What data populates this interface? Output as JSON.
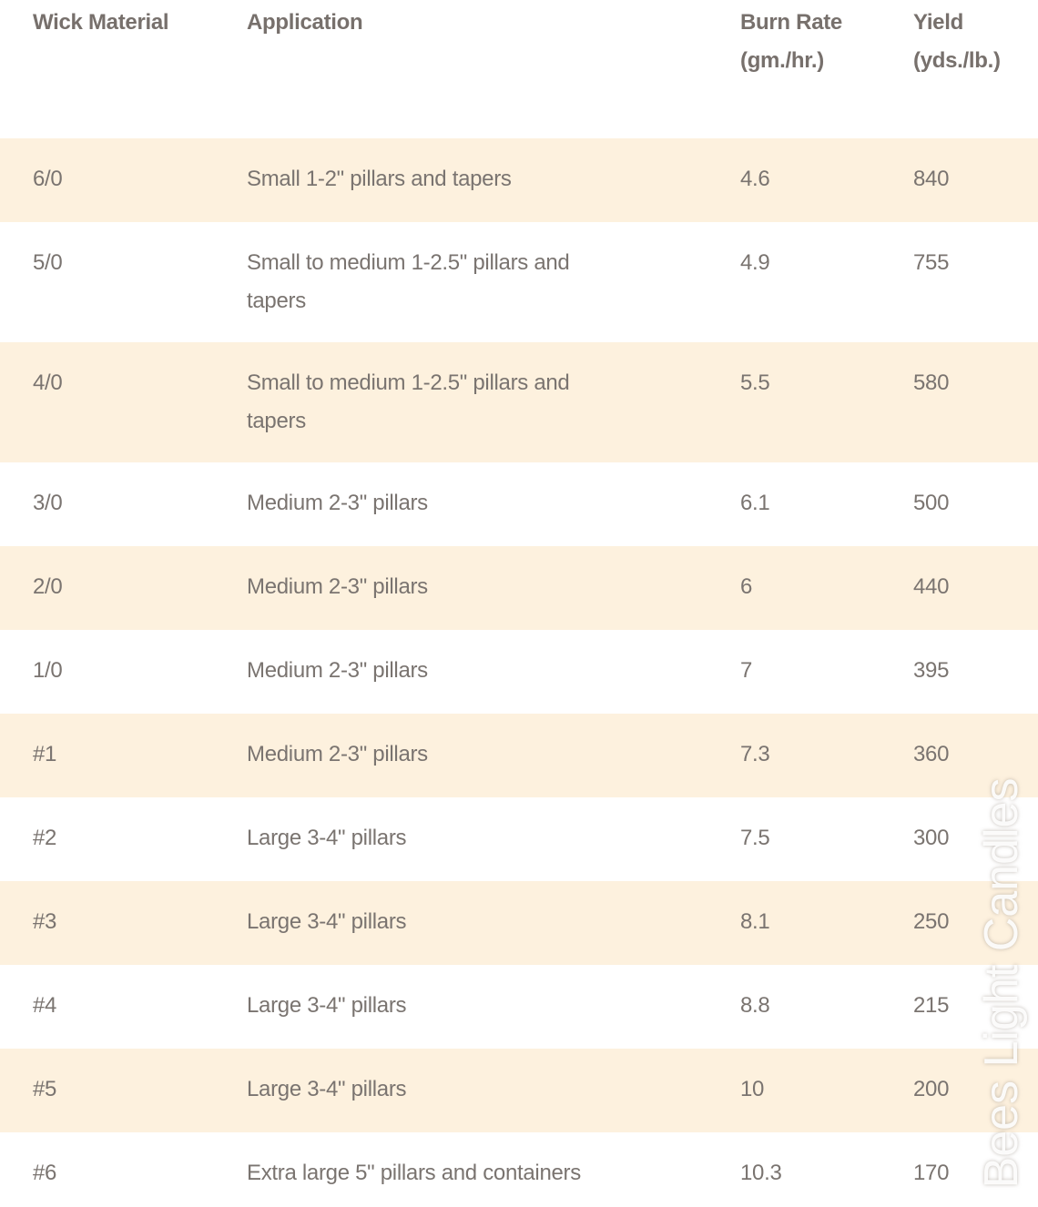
{
  "table": {
    "headers": [
      "Wick Material",
      "Application",
      "Burn Rate (gm./hr.)",
      "Yield (yds./lb.)"
    ],
    "rows": [
      [
        "6/0",
        "Small 1-2\" pillars and tapers",
        "4.6",
        "840"
      ],
      [
        "5/0",
        "Small to medium 1-2.5\" pillars and tapers",
        "4.9",
        "755"
      ],
      [
        "4/0",
        "Small to medium 1-2.5\" pillars and tapers",
        "5.5",
        "580"
      ],
      [
        "3/0",
        "Medium 2-3\" pillars",
        "6.1",
        "500"
      ],
      [
        "2/0",
        "Medium 2-3\" pillars",
        "6",
        "440"
      ],
      [
        "1/0",
        "Medium 2-3\" pillars",
        "7",
        "395"
      ],
      [
        "#1",
        "Medium 2-3\" pillars",
        "7.3",
        "360"
      ],
      [
        "#2",
        "Large 3-4\" pillars",
        "7.5",
        "300"
      ],
      [
        "#3",
        "Large 3-4\" pillars",
        "8.1",
        "250"
      ],
      [
        "#4",
        "Large 3-4\" pillars",
        "8.8",
        "215"
      ],
      [
        "#5",
        "Large 3-4\" pillars",
        "10",
        "200"
      ],
      [
        "#6",
        "Extra large 5\" pillars and containers",
        "10.3",
        "170"
      ]
    ]
  },
  "colors": {
    "stripe": "#fdf1de",
    "text": "#7a7470"
  },
  "watermark": "Bees Light Candles"
}
